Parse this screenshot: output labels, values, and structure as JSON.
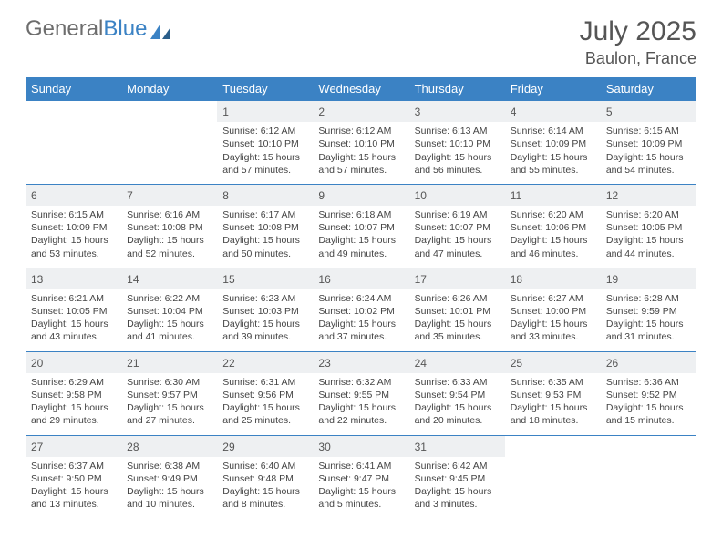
{
  "brand": {
    "part1": "General",
    "part2": "Blue"
  },
  "title": {
    "month": "July 2025",
    "location": "Baulon, France"
  },
  "colors": {
    "header_bg": "#3b82c4",
    "daynum_bg": "#eef0f2",
    "row_border": "#3b82c4",
    "text": "#444444",
    "title_text": "#555555"
  },
  "weekdays": [
    "Sunday",
    "Monday",
    "Tuesday",
    "Wednesday",
    "Thursday",
    "Friday",
    "Saturday"
  ],
  "weeks": [
    {
      "days": [
        null,
        null,
        {
          "n": "1",
          "sunrise": "6:12 AM",
          "sunset": "10:10 PM",
          "daylight": "15 hours and 57 minutes."
        },
        {
          "n": "2",
          "sunrise": "6:12 AM",
          "sunset": "10:10 PM",
          "daylight": "15 hours and 57 minutes."
        },
        {
          "n": "3",
          "sunrise": "6:13 AM",
          "sunset": "10:10 PM",
          "daylight": "15 hours and 56 minutes."
        },
        {
          "n": "4",
          "sunrise": "6:14 AM",
          "sunset": "10:09 PM",
          "daylight": "15 hours and 55 minutes."
        },
        {
          "n": "5",
          "sunrise": "6:15 AM",
          "sunset": "10:09 PM",
          "daylight": "15 hours and 54 minutes."
        }
      ]
    },
    {
      "days": [
        {
          "n": "6",
          "sunrise": "6:15 AM",
          "sunset": "10:09 PM",
          "daylight": "15 hours and 53 minutes."
        },
        {
          "n": "7",
          "sunrise": "6:16 AM",
          "sunset": "10:08 PM",
          "daylight": "15 hours and 52 minutes."
        },
        {
          "n": "8",
          "sunrise": "6:17 AM",
          "sunset": "10:08 PM",
          "daylight": "15 hours and 50 minutes."
        },
        {
          "n": "9",
          "sunrise": "6:18 AM",
          "sunset": "10:07 PM",
          "daylight": "15 hours and 49 minutes."
        },
        {
          "n": "10",
          "sunrise": "6:19 AM",
          "sunset": "10:07 PM",
          "daylight": "15 hours and 47 minutes."
        },
        {
          "n": "11",
          "sunrise": "6:20 AM",
          "sunset": "10:06 PM",
          "daylight": "15 hours and 46 minutes."
        },
        {
          "n": "12",
          "sunrise": "6:20 AM",
          "sunset": "10:05 PM",
          "daylight": "15 hours and 44 minutes."
        }
      ]
    },
    {
      "days": [
        {
          "n": "13",
          "sunrise": "6:21 AM",
          "sunset": "10:05 PM",
          "daylight": "15 hours and 43 minutes."
        },
        {
          "n": "14",
          "sunrise": "6:22 AM",
          "sunset": "10:04 PM",
          "daylight": "15 hours and 41 minutes."
        },
        {
          "n": "15",
          "sunrise": "6:23 AM",
          "sunset": "10:03 PM",
          "daylight": "15 hours and 39 minutes."
        },
        {
          "n": "16",
          "sunrise": "6:24 AM",
          "sunset": "10:02 PM",
          "daylight": "15 hours and 37 minutes."
        },
        {
          "n": "17",
          "sunrise": "6:26 AM",
          "sunset": "10:01 PM",
          "daylight": "15 hours and 35 minutes."
        },
        {
          "n": "18",
          "sunrise": "6:27 AM",
          "sunset": "10:00 PM",
          "daylight": "15 hours and 33 minutes."
        },
        {
          "n": "19",
          "sunrise": "6:28 AM",
          "sunset": "9:59 PM",
          "daylight": "15 hours and 31 minutes."
        }
      ]
    },
    {
      "days": [
        {
          "n": "20",
          "sunrise": "6:29 AM",
          "sunset": "9:58 PM",
          "daylight": "15 hours and 29 minutes."
        },
        {
          "n": "21",
          "sunrise": "6:30 AM",
          "sunset": "9:57 PM",
          "daylight": "15 hours and 27 minutes."
        },
        {
          "n": "22",
          "sunrise": "6:31 AM",
          "sunset": "9:56 PM",
          "daylight": "15 hours and 25 minutes."
        },
        {
          "n": "23",
          "sunrise": "6:32 AM",
          "sunset": "9:55 PM",
          "daylight": "15 hours and 22 minutes."
        },
        {
          "n": "24",
          "sunrise": "6:33 AM",
          "sunset": "9:54 PM",
          "daylight": "15 hours and 20 minutes."
        },
        {
          "n": "25",
          "sunrise": "6:35 AM",
          "sunset": "9:53 PM",
          "daylight": "15 hours and 18 minutes."
        },
        {
          "n": "26",
          "sunrise": "6:36 AM",
          "sunset": "9:52 PM",
          "daylight": "15 hours and 15 minutes."
        }
      ]
    },
    {
      "days": [
        {
          "n": "27",
          "sunrise": "6:37 AM",
          "sunset": "9:50 PM",
          "daylight": "15 hours and 13 minutes."
        },
        {
          "n": "28",
          "sunrise": "6:38 AM",
          "sunset": "9:49 PM",
          "daylight": "15 hours and 10 minutes."
        },
        {
          "n": "29",
          "sunrise": "6:40 AM",
          "sunset": "9:48 PM",
          "daylight": "15 hours and 8 minutes."
        },
        {
          "n": "30",
          "sunrise": "6:41 AM",
          "sunset": "9:47 PM",
          "daylight": "15 hours and 5 minutes."
        },
        {
          "n": "31",
          "sunrise": "6:42 AM",
          "sunset": "9:45 PM",
          "daylight": "15 hours and 3 minutes."
        },
        null,
        null
      ]
    }
  ],
  "labels": {
    "sunrise": "Sunrise:",
    "sunset": "Sunset:",
    "daylight": "Daylight:"
  }
}
